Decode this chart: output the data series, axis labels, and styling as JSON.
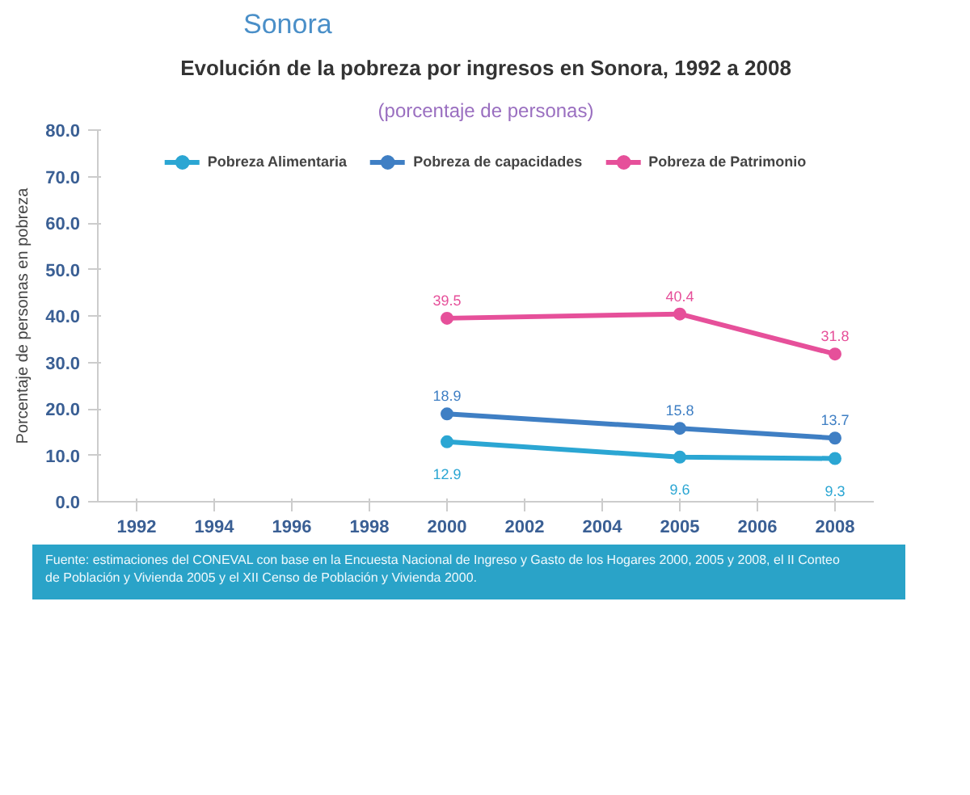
{
  "chart_data": {
    "type": "line",
    "title": "Evolución de la pobreza por ingresos en Sonora, 1992 a 2008",
    "subtitle": "(porcentaje de personas)",
    "ylabel": "Porcentaje de personas en pobreza",
    "categories": [
      "1992",
      "1994",
      "1996",
      "1998",
      "2000",
      "2002",
      "2004",
      "2005",
      "2006",
      "2008"
    ],
    "series": [
      {
        "name": "Pobreza Alimentaria",
        "color": "#2ba6d3",
        "values": [
          null,
          null,
          null,
          null,
          12.9,
          null,
          null,
          9.6,
          null,
          9.3
        ]
      },
      {
        "name": "Pobreza de capacidades",
        "color": "#3f7fc4",
        "values": [
          null,
          null,
          null,
          null,
          18.9,
          null,
          null,
          15.8,
          null,
          13.7
        ]
      },
      {
        "name": "Pobreza de Patrimonio",
        "color": "#e6509a",
        "values": [
          null,
          null,
          null,
          null,
          39.5,
          null,
          null,
          40.4,
          null,
          31.8
        ]
      }
    ],
    "ylim": [
      0,
      80
    ],
    "yticks": [
      {
        "value": 0,
        "label": "0.0"
      },
      {
        "value": 10,
        "label": "10.0"
      },
      {
        "value": 20,
        "label": "20.0"
      },
      {
        "value": 30,
        "label": "30.0"
      },
      {
        "value": 40,
        "label": "40.0"
      },
      {
        "value": 50,
        "label": "50.0"
      },
      {
        "value": 60,
        "label": "60.0"
      },
      {
        "value": 70,
        "label": "70.0"
      },
      {
        "value": 80,
        "label": "80.0"
      }
    ],
    "grid": false,
    "legend": "top",
    "marker": "circle",
    "line_style": "solid",
    "data_labels": true,
    "annotations": [
      "Sonora",
      "Fuente: estimaciones del CONEVAL con base en la Encuesta Nacional de Ingreso y Gasto de los Hogares 2000, 2005 y 2008, el II Conteo de Población y Vivienda 2005 y el XII Censo de Población y Vivienda 2000."
    ]
  }
}
